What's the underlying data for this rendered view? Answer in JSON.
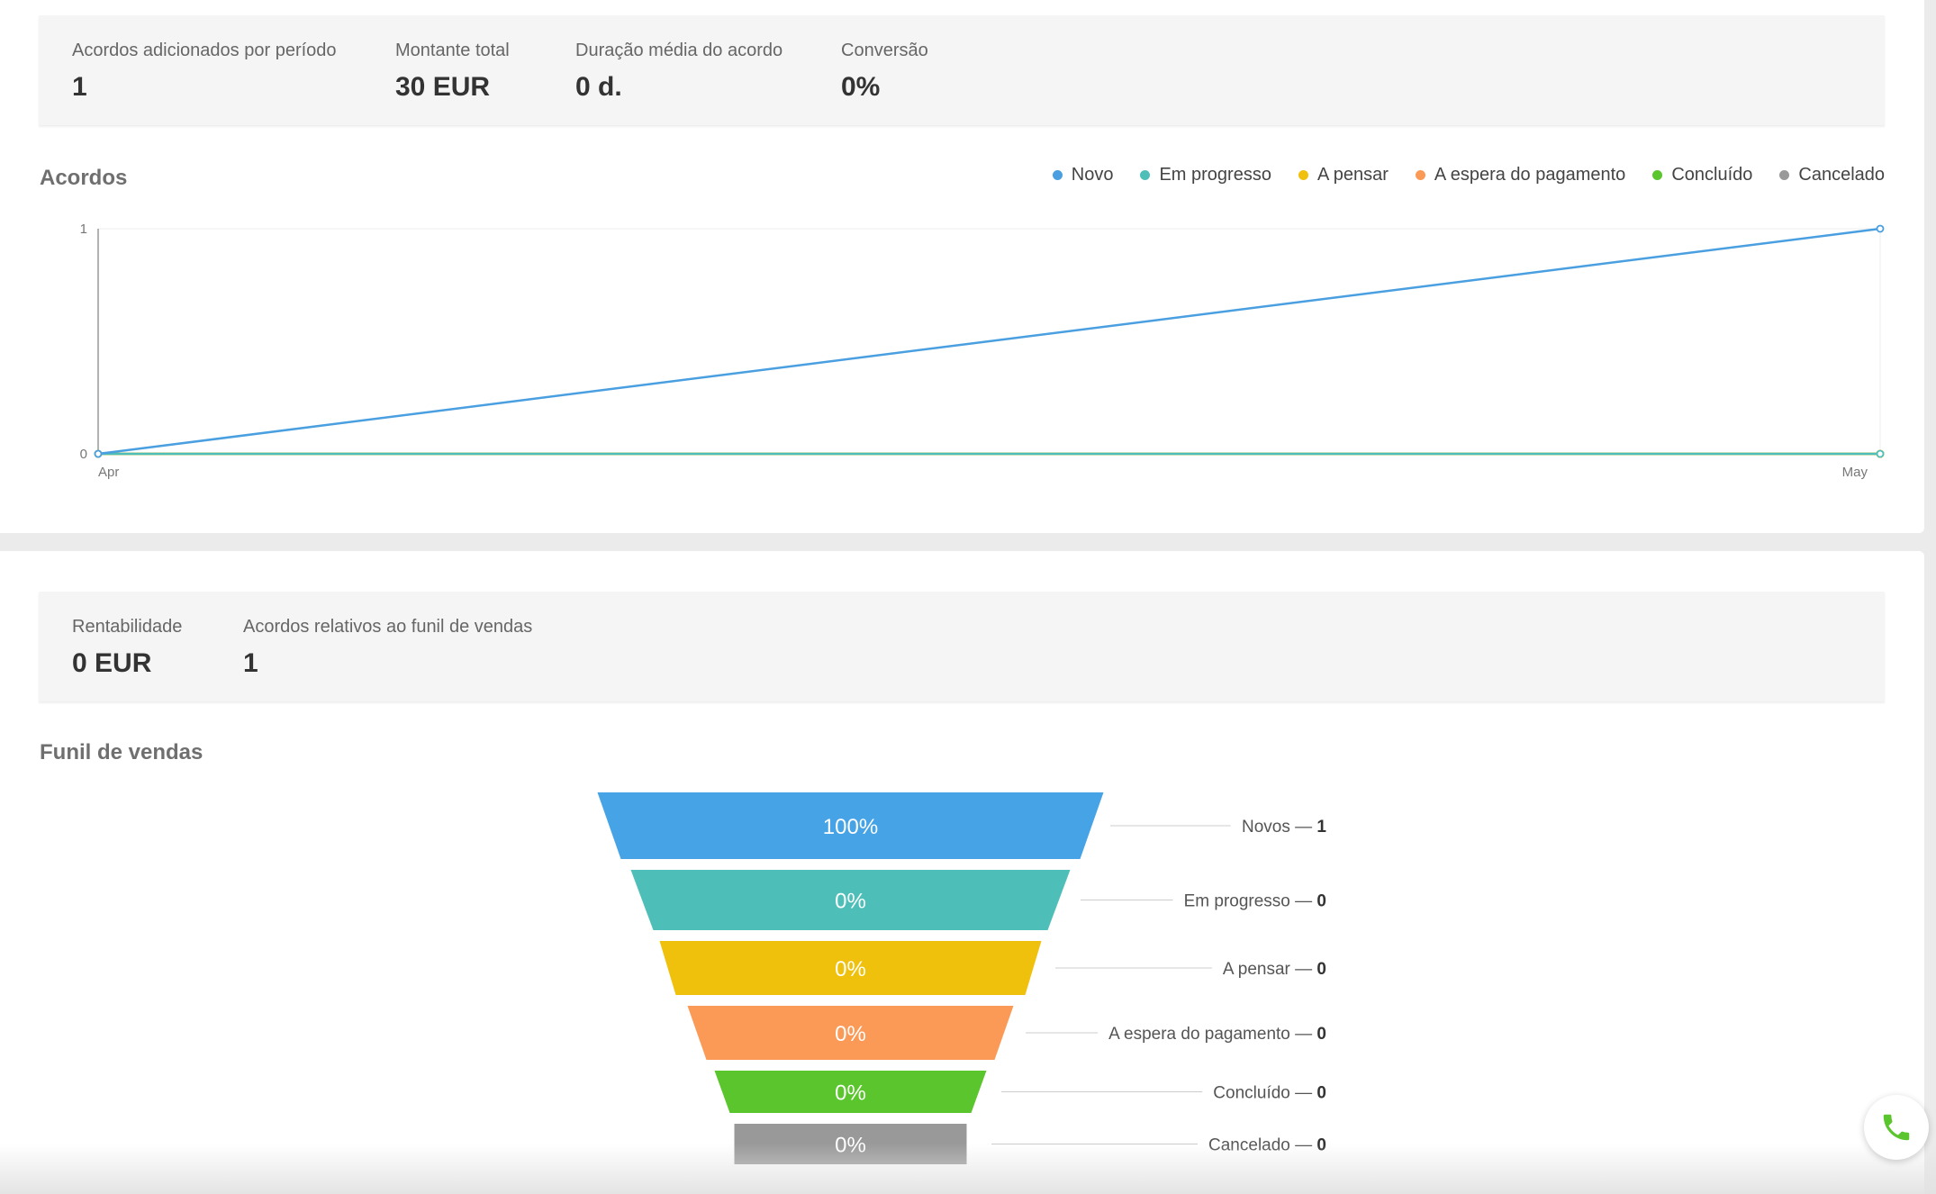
{
  "summary": {
    "stats": [
      {
        "label": "Acordos adicionados por período",
        "value": "1"
      },
      {
        "label": "Montante total",
        "value": "30 EUR"
      },
      {
        "label": "Duração média do acordo",
        "value": "0 d."
      },
      {
        "label": "Conversão",
        "value": "0%"
      }
    ]
  },
  "deals_chart": {
    "title": "Acordos"
  },
  "profit": {
    "stats": [
      {
        "label": "Rentabilidade",
        "value": "0 EUR"
      },
      {
        "label": "Acordos relativos ao funil de vendas",
        "value": "1"
      }
    ]
  },
  "funnel": {
    "title": "Funil de vendas"
  },
  "icons": {
    "phone": "phone-icon"
  },
  "chart_data": [
    {
      "type": "line",
      "title": "Acordos",
      "x": [
        "Apr",
        "May"
      ],
      "ylim": [
        0,
        1
      ],
      "yticks": [
        "0",
        "1"
      ],
      "legend_position": "top-right",
      "series": [
        {
          "name": "Novo",
          "color": "#4a9fe0",
          "values": [
            0,
            1
          ]
        },
        {
          "name": "Em progresso",
          "color": "#4ebfb8",
          "values": [
            0,
            0
          ]
        },
        {
          "name": "A pensar",
          "color": "#f0c10c",
          "values": [
            0,
            0
          ]
        },
        {
          "name": "A espera do pagamento",
          "color": "#fb9a57",
          "values": [
            0,
            0
          ]
        },
        {
          "name": "Concluído",
          "color": "#5ac52d",
          "values": [
            0,
            0
          ]
        },
        {
          "name": "Cancelado",
          "color": "#999999",
          "values": [
            0,
            0
          ]
        }
      ]
    },
    {
      "type": "funnel",
      "title": "Funil de vendas",
      "stages": [
        {
          "name": "Novos",
          "count": "1",
          "percent": "100%",
          "color": "#46a3e6"
        },
        {
          "name": "Em progresso",
          "count": "0",
          "percent": "0%",
          "color": "#4ebfb8"
        },
        {
          "name": "A pensar",
          "count": "0",
          "percent": "0%",
          "color": "#f0c10c"
        },
        {
          "name": "A espera do pagamento",
          "count": "0",
          "percent": "0%",
          "color": "#fb9a57"
        },
        {
          "name": "Concluído",
          "count": "0",
          "percent": "0%",
          "color": "#5ac52d"
        },
        {
          "name": "Cancelado",
          "count": "0",
          "percent": "0%",
          "color": "#999999"
        }
      ]
    }
  ]
}
